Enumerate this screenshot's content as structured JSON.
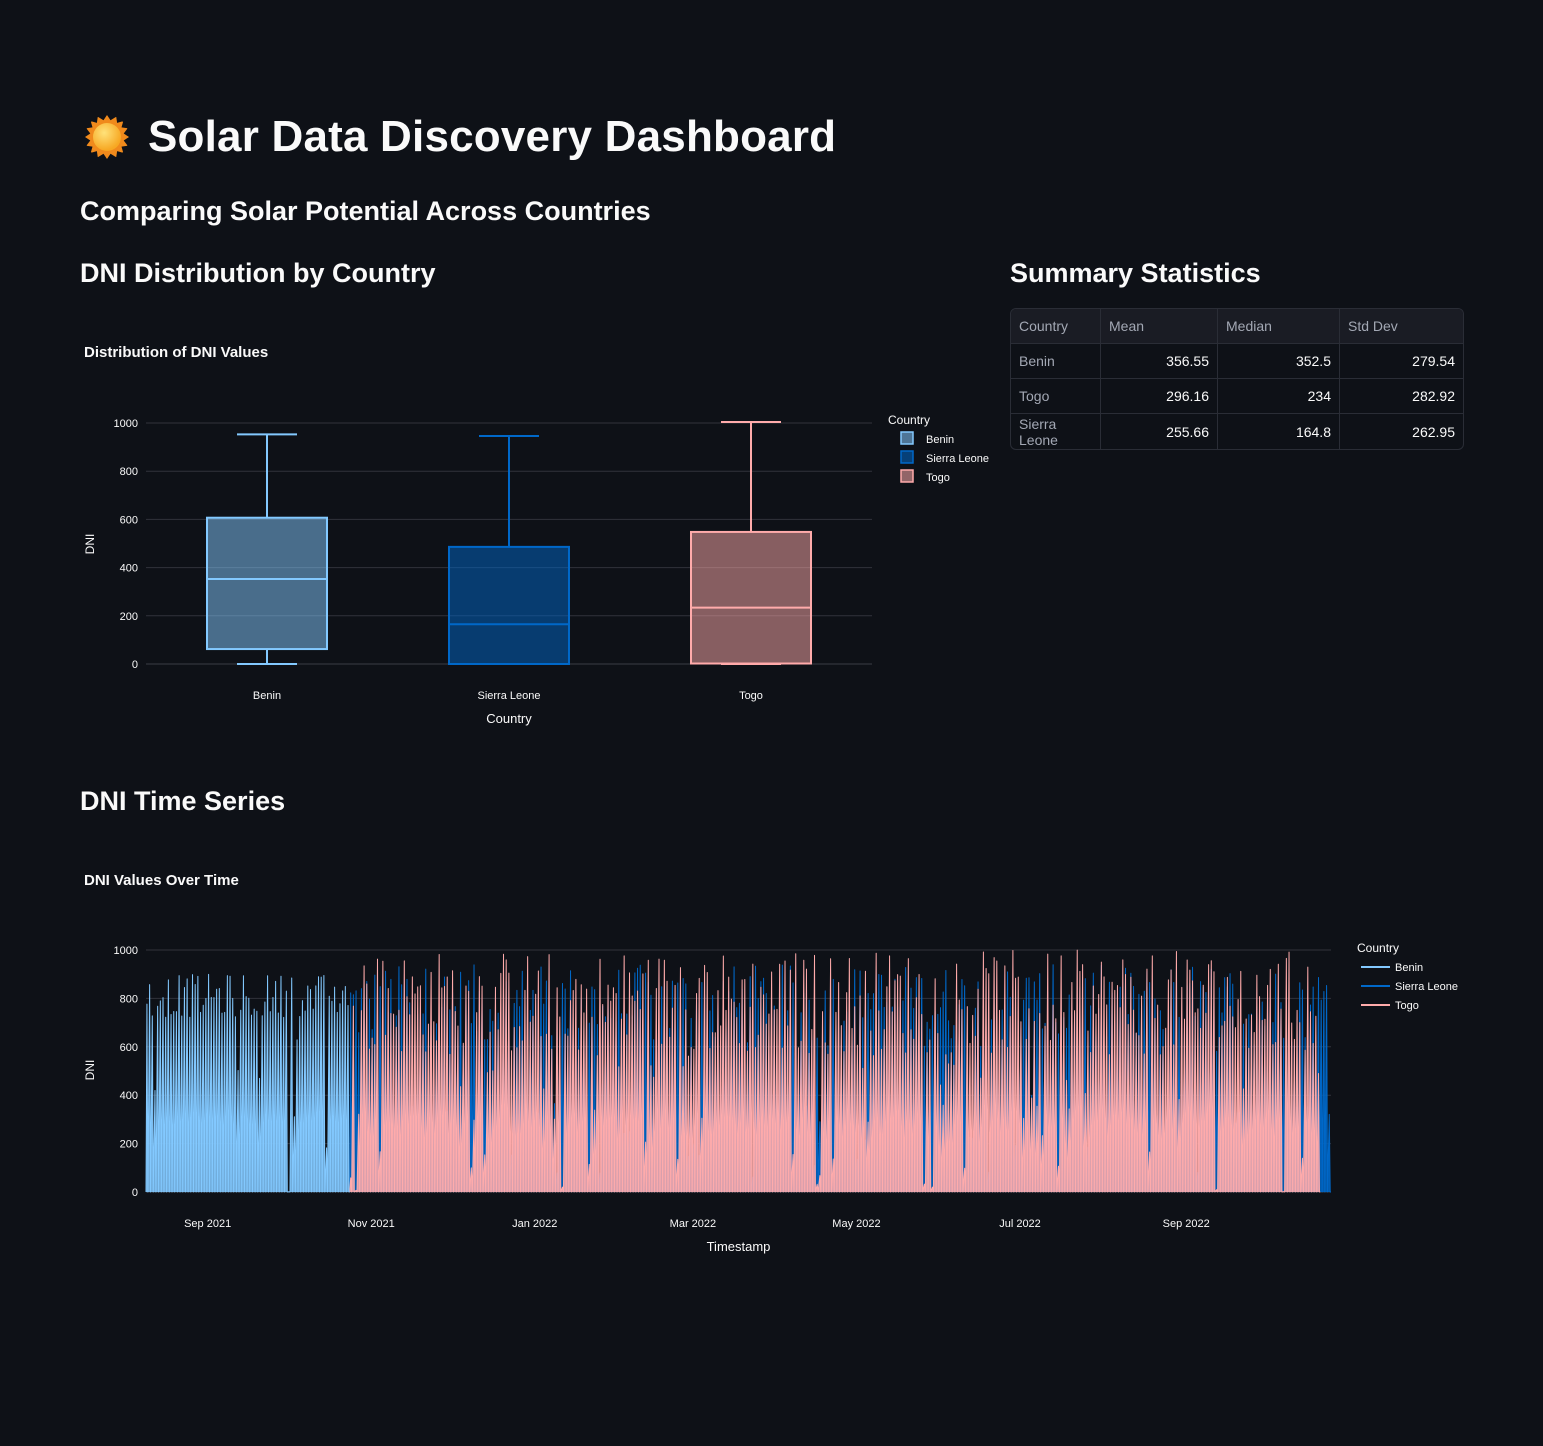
{
  "page": {
    "title": "Solar Data Discovery Dashboard",
    "subtitle": "Comparing Solar Potential Across Countries",
    "section_box": "DNI Distribution by Country",
    "section_stats": "Summary Statistics",
    "section_ts": "DNI Time Series"
  },
  "colors": {
    "background": "#0e1117",
    "Benin": "#83c9ff",
    "Sierra Leone": "#0068c9",
    "Togo": "#ffabab"
  },
  "stats": {
    "headers": [
      "Country",
      "Mean",
      "Median",
      "Std Dev"
    ],
    "rows": [
      [
        "Benin",
        "356.55",
        "352.5",
        "279.54"
      ],
      [
        "Togo",
        "296.16",
        "234",
        "282.92"
      ],
      [
        "Sierra Leone",
        "255.66",
        "164.8",
        "262.95"
      ]
    ]
  },
  "chart_data": [
    {
      "type": "box",
      "title": "Distribution of DNI Values",
      "xlabel": "Country",
      "ylabel": "DNI",
      "ylim": [
        0,
        1000
      ],
      "yticks": [
        0,
        200,
        400,
        600,
        800,
        1000
      ],
      "legend_title": "Country",
      "legend_position": "right",
      "categories": [
        "Benin",
        "Sierra Leone",
        "Togo"
      ],
      "series": [
        {
          "name": "Benin",
          "min": 0,
          "q1": 62,
          "median": 352.5,
          "q3": 607,
          "max": 953
        },
        {
          "name": "Sierra Leone",
          "min": 0,
          "q1": 0,
          "median": 164.8,
          "q3": 486,
          "max": 946
        },
        {
          "name": "Togo",
          "min": 0,
          "q1": 2,
          "median": 234,
          "q3": 548,
          "max": 1004
        }
      ]
    },
    {
      "type": "line",
      "title": "DNI Values Over Time",
      "xlabel": "Timestamp",
      "ylabel": "DNI",
      "ylim": [
        0,
        1000
      ],
      "yticks": [
        0,
        200,
        400,
        600,
        800,
        1000
      ],
      "xrange": [
        "2021-08-09",
        "2022-10-25"
      ],
      "xticks": [
        {
          "date": "2021-09-01",
          "label": "Sep 2021"
        },
        {
          "date": "2021-11-01",
          "label": "Nov 2021"
        },
        {
          "date": "2022-01-01",
          "label": "Jan 2022"
        },
        {
          "date": "2022-03-01",
          "label": "Mar 2022"
        },
        {
          "date": "2022-05-01",
          "label": "May 2022"
        },
        {
          "date": "2022-07-01",
          "label": "Jul 2022"
        },
        {
          "date": "2022-09-01",
          "label": "Sep 2022"
        }
      ],
      "legend_title": "Country",
      "legend_position": "right",
      "series": [
        {
          "name": "Benin",
          "start": "2021-08-09",
          "end": "2021-10-24",
          "peak_range": [
            720,
            900
          ]
        },
        {
          "name": "Sierra Leone",
          "start": "2021-10-24",
          "end": "2022-10-25",
          "peak_range": [
            600,
            940
          ]
        },
        {
          "name": "Togo",
          "start": "2021-10-24",
          "end": "2022-10-21",
          "peak_range": [
            560,
            1000
          ]
        }
      ]
    }
  ]
}
